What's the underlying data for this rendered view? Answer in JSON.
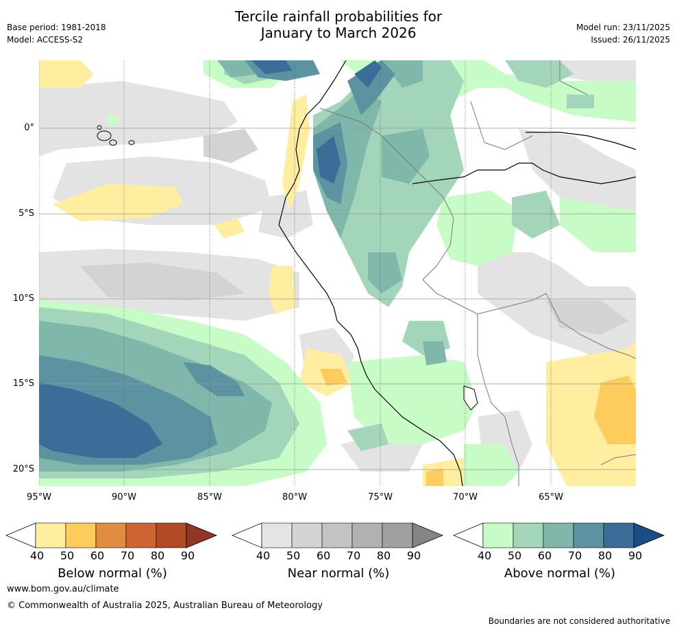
{
  "header": {
    "base_period": "Base period: 1981-2018",
    "model": "Model: ACCESS-S2",
    "title_line1": "Tercile rainfall probabilities for",
    "title_line2": "January to March 2026",
    "model_run": "Model run: 23/11/2025",
    "issued": "Issued: 26/11/2025"
  },
  "map": {
    "lat_labels": [
      "0°",
      "5°S",
      "10°S",
      "15°S",
      "20°S"
    ],
    "lon_labels": [
      "95°W",
      "90°W",
      "85°W",
      "80°W",
      "75°W",
      "70°W",
      "65°W"
    ]
  },
  "colorbars": {
    "below": {
      "label": "Below normal (%)",
      "ticks": [
        "40",
        "50",
        "60",
        "70",
        "80",
        "90"
      ],
      "colors": [
        "#ffffff",
        "#ffeda0",
        "#fecc5c",
        "#e08d42",
        "#cc6533",
        "#b04a27",
        "#933724"
      ]
    },
    "near": {
      "label": "Near normal (%)",
      "ticks": [
        "40",
        "50",
        "60",
        "70",
        "80",
        "90"
      ],
      "colors": [
        "#ffffff",
        "#e5e5e5",
        "#d4d4d4",
        "#c3c3c3",
        "#b1b1b1",
        "#a0a0a0",
        "#858585"
      ]
    },
    "above": {
      "label": "Above normal (%)",
      "ticks": [
        "40",
        "50",
        "60",
        "70",
        "80",
        "90"
      ],
      "colors": [
        "#ffffff",
        "#c7fcc7",
        "#a2d5b9",
        "#7fb7aa",
        "#5b93a0",
        "#3a6e98",
        "#1a4d85"
      ]
    }
  },
  "footer": {
    "url": "www.bom.gov.au/climate",
    "copyright": "© Commonwealth of Australia 2025, Australian Bureau of Meteorology",
    "disclaimer": "Boundaries are not considered authoritative"
  }
}
